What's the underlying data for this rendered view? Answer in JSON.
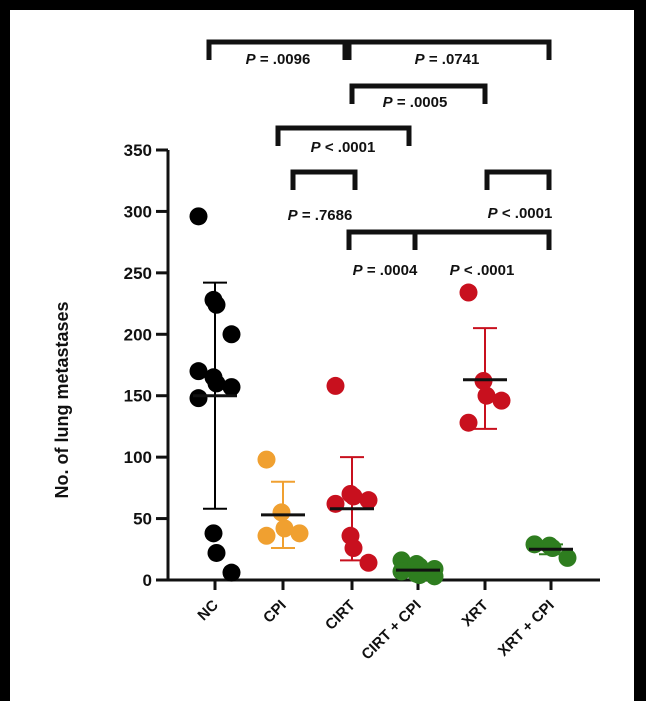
{
  "chart_data": {
    "type": "scatter",
    "title": "",
    "xlabel": "",
    "ylabel": "No. of lung metastases",
    "ylim": [
      0,
      350
    ],
    "yticks": [
      0,
      50,
      100,
      150,
      200,
      250,
      300,
      350
    ],
    "grid": false,
    "legend": "none",
    "categories": [
      "NC",
      "CPI",
      "CIRT",
      "CIRT + CPI",
      "XRT",
      "XRT + CPI"
    ],
    "colors": {
      "NC": "#000000",
      "CPI": "#f0a030",
      "CIRT": "#c8101e",
      "CIRT + CPI": "#2e7d1f",
      "XRT": "#c8101e",
      "XRT + CPI": "#2e7d1f"
    },
    "groups": [
      {
        "category": "NC",
        "points": [
          296,
          228,
          224,
          200,
          170,
          165,
          160,
          157,
          148,
          38,
          22,
          6
        ],
        "mean": 150,
        "sd_upper": 242,
        "sd_lower": 58
      },
      {
        "category": "CPI",
        "points": [
          98,
          55,
          42,
          38,
          36
        ],
        "mean": 53,
        "sd_upper": 80,
        "sd_lower": 26
      },
      {
        "category": "CIRT",
        "points": [
          158,
          70,
          68,
          65,
          62,
          36,
          26,
          14
        ],
        "mean": 58,
        "sd_upper": 100,
        "sd_lower": 16
      },
      {
        "category": "CIRT + CPI",
        "points": [
          16,
          13,
          11,
          9,
          7,
          5,
          4,
          3
        ],
        "mean": 8,
        "sd_upper": 12,
        "sd_lower": 4
      },
      {
        "category": "XRT",
        "points": [
          234,
          162,
          150,
          146,
          128
        ],
        "mean": 163,
        "sd_upper": 205,
        "sd_lower": 123
      },
      {
        "category": "XRT + CPI",
        "points": [
          29,
          28,
          26,
          18
        ],
        "mean": 25,
        "sd_upper": 29,
        "sd_lower": 21
      }
    ],
    "comparisons": [
      {
        "from": "NC",
        "to": "CIRT",
        "p_prefix": "P",
        "p_rest": " = .0096"
      },
      {
        "from": "CIRT",
        "to": "XRT + CPI",
        "p_prefix": "P",
        "p_rest": " = .0741"
      },
      {
        "from": "CIRT",
        "to": "XRT",
        "p_prefix": "P",
        "p_rest": " = .0005"
      },
      {
        "from": "CPI",
        "to": "CIRT + CPI",
        "p_prefix": "P",
        "p_rest": " < .0001"
      },
      {
        "from": "CPI",
        "to": "CIRT",
        "p_prefix": "P",
        "p_rest": " = .7686"
      },
      {
        "from": "XRT",
        "to": "XRT + CPI",
        "p_prefix": "P",
        "p_rest": " < .0001"
      },
      {
        "from": "CIRT",
        "to": "CIRT + CPI",
        "p_prefix": "P",
        "p_rest": " = .0004"
      },
      {
        "from": "CIRT + CPI",
        "to": "XRT + CPI",
        "p_prefix": "P",
        "p_rest": " < .0001"
      }
    ]
  }
}
